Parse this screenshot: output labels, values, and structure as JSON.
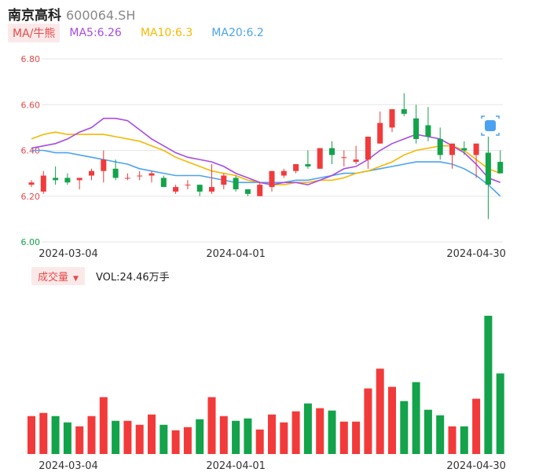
{
  "header": {
    "name": "南京高科",
    "code": "600064.SH"
  },
  "ma_legend": {
    "tag": "MA/牛熊",
    "ma5": "MA5:6.26",
    "ma10": "MA10:6.3",
    "ma20": "MA20:6.2"
  },
  "volume_legend": {
    "tag": "成交量",
    "text": "VOL:24.46万手"
  },
  "colors": {
    "up": "#f23a3a",
    "down": "#13a34a",
    "ma5": "#a64be6",
    "ma10": "#f5b800",
    "ma20": "#4aa3f0",
    "axis_red": "#e84a4a",
    "axis_green": "#13a34a"
  },
  "chart_data": [
    {
      "type": "candlestick",
      "y_ticks": [
        "6.80",
        "6.60",
        "6.40",
        "6.20",
        "6.00"
      ],
      "ylim": [
        6.0,
        6.8
      ],
      "x_labels": [
        "2024-03-04",
        "2024-04-01",
        "2024-04-30"
      ],
      "candles": [
        {
          "o": 6.25,
          "c": 6.26,
          "h": 6.27,
          "l": 6.24
        },
        {
          "o": 6.22,
          "c": 6.29,
          "h": 6.31,
          "l": 6.21
        },
        {
          "o": 6.28,
          "c": 6.27,
          "h": 6.33,
          "l": 6.25
        },
        {
          "o": 6.28,
          "c": 6.26,
          "h": 6.3,
          "l": 6.25
        },
        {
          "o": 6.27,
          "c": 6.28,
          "h": 6.28,
          "l": 6.23
        },
        {
          "o": 6.29,
          "c": 6.31,
          "h": 6.32,
          "l": 6.27
        },
        {
          "o": 6.31,
          "c": 6.36,
          "h": 6.4,
          "l": 6.26
        },
        {
          "o": 6.32,
          "c": 6.28,
          "h": 6.36,
          "l": 6.27
        },
        {
          "o": 6.28,
          "c": 6.28,
          "h": 6.3,
          "l": 6.27
        },
        {
          "o": 6.29,
          "c": 6.29,
          "h": 6.31,
          "l": 6.27
        },
        {
          "o": 6.29,
          "c": 6.3,
          "h": 6.31,
          "l": 6.26
        },
        {
          "o": 6.28,
          "c": 6.24,
          "h": 6.29,
          "l": 6.24
        },
        {
          "o": 6.22,
          "c": 6.24,
          "h": 6.25,
          "l": 6.21
        },
        {
          "o": 6.25,
          "c": 6.25,
          "h": 6.27,
          "l": 6.23
        },
        {
          "o": 6.25,
          "c": 6.22,
          "h": 6.25,
          "l": 6.2
        },
        {
          "o": 6.22,
          "c": 6.24,
          "h": 6.34,
          "l": 6.21
        },
        {
          "o": 6.25,
          "c": 6.29,
          "h": 6.3,
          "l": 6.23
        },
        {
          "o": 6.28,
          "c": 6.23,
          "h": 6.29,
          "l": 6.22
        },
        {
          "o": 6.23,
          "c": 6.21,
          "h": 6.23,
          "l": 6.2
        },
        {
          "o": 6.2,
          "c": 6.25,
          "h": 6.26,
          "l": 6.2
        },
        {
          "o": 6.24,
          "c": 6.31,
          "h": 6.31,
          "l": 6.22
        },
        {
          "o": 6.29,
          "c": 6.31,
          "h": 6.32,
          "l": 6.28
        },
        {
          "o": 6.31,
          "c": 6.34,
          "h": 6.34,
          "l": 6.3
        },
        {
          "o": 6.34,
          "c": 6.33,
          "h": 6.4,
          "l": 6.32
        },
        {
          "o": 6.32,
          "c": 6.41,
          "h": 6.41,
          "l": 6.32
        },
        {
          "o": 6.41,
          "c": 6.38,
          "h": 6.44,
          "l": 6.34
        },
        {
          "o": 6.37,
          "c": 6.37,
          "h": 6.4,
          "l": 6.33
        },
        {
          "o": 6.35,
          "c": 6.36,
          "h": 6.42,
          "l": 6.34
        },
        {
          "o": 6.36,
          "c": 6.46,
          "h": 6.46,
          "l": 6.32
        },
        {
          "o": 6.43,
          "c": 6.52,
          "h": 6.57,
          "l": 6.43
        },
        {
          "o": 6.5,
          "c": 6.58,
          "h": 6.58,
          "l": 6.48
        },
        {
          "o": 6.58,
          "c": 6.56,
          "h": 6.65,
          "l": 6.55
        },
        {
          "o": 6.54,
          "c": 6.45,
          "h": 6.6,
          "l": 6.43
        },
        {
          "o": 6.51,
          "c": 6.46,
          "h": 6.59,
          "l": 6.44
        },
        {
          "o": 6.45,
          "c": 6.38,
          "h": 6.5,
          "l": 6.36
        },
        {
          "o": 6.38,
          "c": 6.43,
          "h": 6.43,
          "l": 6.32
        },
        {
          "o": 6.41,
          "c": 6.4,
          "h": 6.44,
          "l": 6.38
        },
        {
          "o": 6.38,
          "c": 6.43,
          "h": 6.43,
          "l": 6.28
        },
        {
          "o": 6.39,
          "c": 6.25,
          "h": 6.46,
          "l": 6.1
        },
        {
          "o": 6.35,
          "c": 6.3,
          "h": 6.4,
          "l": 6.3
        }
      ],
      "ma5": [
        6.41,
        6.42,
        6.43,
        6.45,
        6.48,
        6.5,
        6.54,
        6.54,
        6.53,
        6.49,
        6.45,
        6.42,
        6.39,
        6.37,
        6.36,
        6.35,
        6.33,
        6.3,
        6.28,
        6.26,
        6.25,
        6.26,
        6.26,
        6.25,
        6.27,
        6.29,
        6.32,
        6.33,
        6.36,
        6.4,
        6.43,
        6.45,
        6.47,
        6.46,
        6.45,
        6.42,
        6.39,
        6.34,
        6.28,
        6.26
      ],
      "ma10": [
        6.45,
        6.47,
        6.48,
        6.47,
        6.47,
        6.47,
        6.47,
        6.46,
        6.45,
        6.44,
        6.42,
        6.4,
        6.37,
        6.35,
        6.33,
        6.31,
        6.3,
        6.29,
        6.27,
        6.26,
        6.25,
        6.25,
        6.26,
        6.26,
        6.27,
        6.27,
        6.28,
        6.3,
        6.31,
        6.33,
        6.35,
        6.38,
        6.4,
        6.41,
        6.42,
        6.42,
        6.4,
        6.36,
        6.32,
        6.3
      ],
      "ma20": [
        6.4,
        6.4,
        6.39,
        6.39,
        6.38,
        6.37,
        6.36,
        6.35,
        6.34,
        6.32,
        6.31,
        6.3,
        6.29,
        6.29,
        6.29,
        6.28,
        6.27,
        6.26,
        6.26,
        6.26,
        6.26,
        6.26,
        6.27,
        6.27,
        6.28,
        6.29,
        6.3,
        6.3,
        6.31,
        6.32,
        6.33,
        6.34,
        6.35,
        6.35,
        6.35,
        6.34,
        6.32,
        6.29,
        6.25,
        6.2
      ],
      "volumes": [
        48,
        52,
        48,
        40,
        35,
        48,
        72,
        42,
        42,
        37,
        50,
        37,
        30,
        34,
        44,
        72,
        48,
        42,
        45,
        31,
        50,
        40,
        54,
        64,
        58,
        55,
        41,
        41,
        83,
        108,
        85,
        67,
        91,
        56,
        49,
        35,
        35,
        70,
        175,
        102
      ]
    }
  ]
}
